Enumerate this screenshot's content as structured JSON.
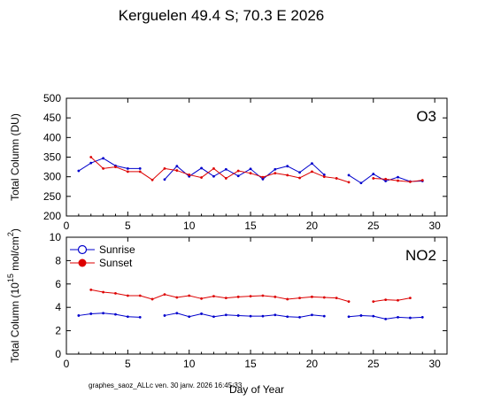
{
  "title": "Kerguelen  49.4 S; 70.3 E    2026",
  "footer": "graphes_saoz_ALLc   ven. 30 janv. 2026 16:45:33",
  "colors": {
    "sunrise": "#0000cc",
    "sunset": "#dd0000",
    "axis": "#000000"
  },
  "legend": {
    "sunrise": "Sunrise",
    "sunset": "Sunset"
  },
  "chart_data": [
    {
      "type": "line",
      "panel_label": "O3",
      "ylabel": "Total Column  (DU)",
      "xlabel": "",
      "xlim": [
        0,
        31
      ],
      "ylim": [
        200,
        500
      ],
      "xticks": [
        0,
        5,
        10,
        15,
        20,
        25,
        30
      ],
      "yticks": [
        200,
        250,
        300,
        350,
        400,
        450,
        500
      ],
      "series": [
        {
          "name": "Sunrise",
          "x": [
            1,
            2,
            3,
            4,
            5,
            6,
            8,
            9,
            10,
            11,
            12,
            13,
            14,
            15,
            16,
            17,
            18,
            19,
            20,
            21,
            23,
            24,
            25,
            26,
            27,
            28,
            29
          ],
          "y": [
            315,
            335,
            347,
            328,
            321,
            321,
            293,
            327,
            301,
            322,
            301,
            319,
            302,
            320,
            294,
            319,
            327,
            311,
            334,
            305,
            304,
            284,
            307,
            289,
            299,
            288,
            289
          ]
        },
        {
          "name": "Sunset",
          "x": [
            2,
            3,
            4,
            5,
            6,
            7,
            8,
            9,
            10,
            11,
            12,
            13,
            14,
            15,
            16,
            17,
            18,
            19,
            20,
            21,
            22,
            23,
            25,
            26,
            27,
            28,
            29
          ],
          "y": [
            350,
            321,
            325,
            313,
            313,
            292,
            321,
            316,
            305,
            298,
            321,
            296,
            315,
            309,
            299,
            309,
            304,
            297,
            313,
            300,
            296,
            286,
            296,
            294,
            290,
            287,
            291
          ]
        }
      ]
    },
    {
      "type": "line",
      "panel_label": "NO2",
      "ylabel": "Total Column (10",
      "ylabel_sup": "15",
      "ylabel_rest": " mol/cm",
      "ylabel_sup2": "2",
      "ylabel_end": ")",
      "xlabel": "Day of Year",
      "xlim": [
        0,
        31
      ],
      "ylim": [
        0,
        10
      ],
      "xticks": [
        0,
        5,
        10,
        15,
        20,
        25,
        30
      ],
      "yticks": [
        0,
        2,
        4,
        6,
        8,
        10
      ],
      "series": [
        {
          "name": "Sunrise",
          "x": [
            1,
            2,
            3,
            4,
            5,
            6,
            8,
            9,
            10,
            11,
            12,
            13,
            14,
            15,
            16,
            17,
            18,
            19,
            20,
            21,
            23,
            24,
            25,
            26,
            27,
            28,
            29
          ],
          "y": [
            3.3,
            3.45,
            3.5,
            3.4,
            3.2,
            3.15,
            3.3,
            3.5,
            3.2,
            3.45,
            3.2,
            3.35,
            3.3,
            3.25,
            3.25,
            3.35,
            3.2,
            3.15,
            3.35,
            3.25,
            3.2,
            3.3,
            3.25,
            3.0,
            3.15,
            3.1,
            3.15
          ]
        },
        {
          "name": "Sunset",
          "x": [
            2,
            3,
            4,
            5,
            6,
            7,
            8,
            9,
            10,
            11,
            12,
            13,
            14,
            15,
            16,
            17,
            18,
            19,
            20,
            21,
            22,
            23,
            25,
            26,
            27,
            28
          ],
          "y": [
            5.5,
            5.3,
            5.2,
            5.0,
            5.0,
            4.7,
            5.1,
            4.85,
            5.0,
            4.75,
            4.95,
            4.8,
            4.9,
            4.95,
            5.0,
            4.9,
            4.7,
            4.8,
            4.9,
            4.85,
            4.8,
            4.5,
            4.5,
            4.65,
            4.6,
            4.8
          ]
        }
      ]
    }
  ]
}
